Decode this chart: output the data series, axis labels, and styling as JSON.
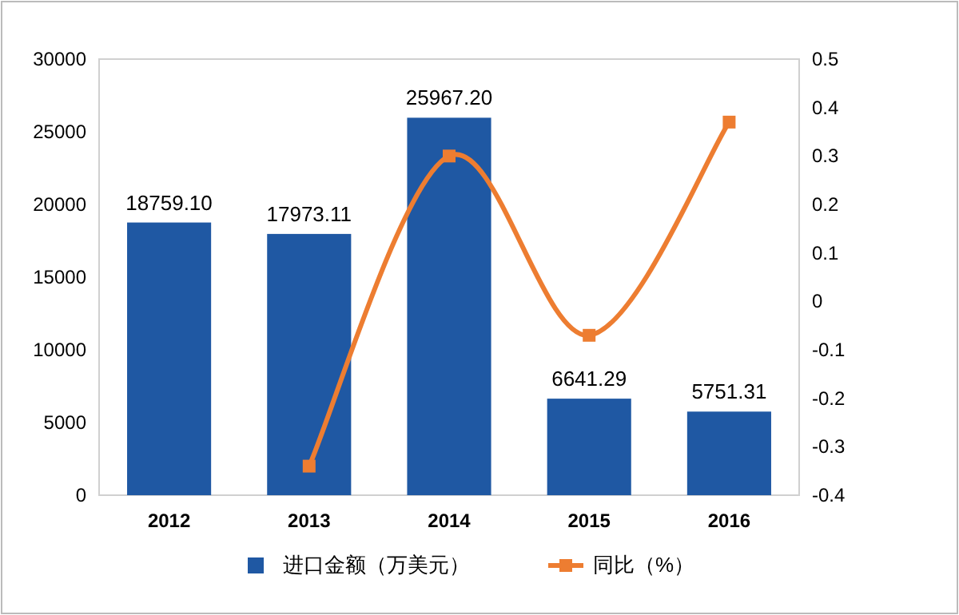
{
  "chart_data": {
    "type": "bar",
    "categories": [
      "2012",
      "2013",
      "2014",
      "2015",
      "2016"
    ],
    "series": [
      {
        "name": "进口金额（万美元）",
        "color": "#1f58a3",
        "values": [
          18759.1,
          17973.11,
          25967.2,
          6641.29,
          5751.31
        ],
        "value_labels": [
          "18759.10",
          "17973.11",
          "25967.20",
          "6641.29",
          "5751.31"
        ]
      },
      {
        "name": "同比（%）",
        "type": "line",
        "axis": "y2",
        "color": "#ed7d31",
        "marker": "square",
        "values": [
          null,
          -0.34,
          0.3,
          -0.07,
          0.37
        ]
      }
    ],
    "ylim": [
      0,
      30000
    ],
    "yticks": [
      0,
      5000,
      10000,
      15000,
      20000,
      25000,
      30000
    ],
    "y2lim": [
      -0.4,
      0.5
    ],
    "y2ticks": [
      -0.4,
      -0.3,
      -0.2,
      -0.1,
      0,
      0.1,
      0.2,
      0.3,
      0.4,
      0.5
    ],
    "grid": false,
    "legend": "bottom"
  }
}
